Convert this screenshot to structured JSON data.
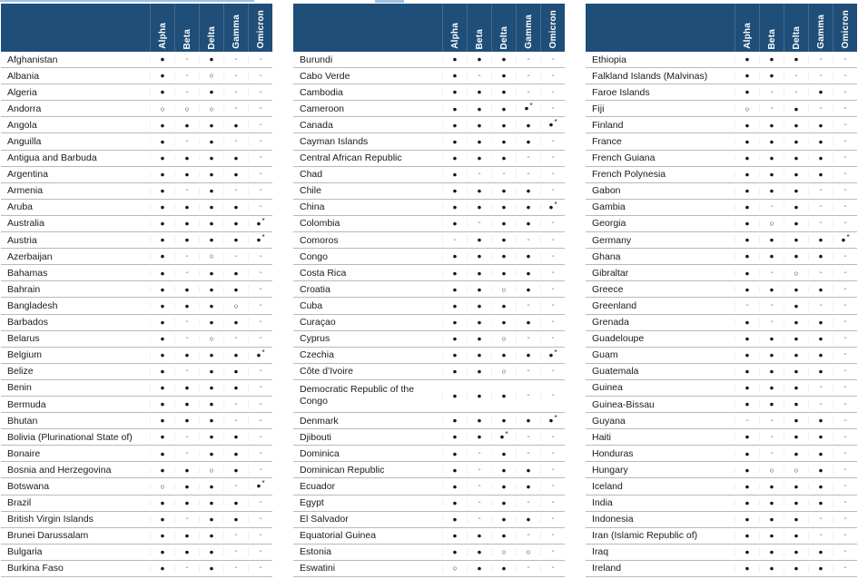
{
  "columns": [
    "Alpha",
    "Beta",
    "Delta",
    "Gamma",
    "Omicron"
  ],
  "glyphs": {
    "f": "●",
    "o": "○",
    "-": "-"
  },
  "colors": {
    "header_bg": "#1f4e79",
    "header_text": "#ffffff",
    "row_border": "#b9b9b9",
    "mark": "#141414",
    "dash": "#7f7f7f",
    "caption_remnant": "#9dc3e6"
  },
  "tables": [
    {
      "rows": [
        {
          "c": "Afghanistan",
          "m": [
            "f",
            "-",
            "f",
            "-",
            "-"
          ]
        },
        {
          "c": "Albania",
          "m": [
            "f",
            "-",
            "o",
            "-",
            "-"
          ]
        },
        {
          "c": "Algeria",
          "m": [
            "f",
            "-",
            "f",
            "-",
            "-"
          ]
        },
        {
          "c": "Andorra",
          "m": [
            "o",
            "o",
            "o",
            "-",
            "-"
          ]
        },
        {
          "c": "Angola",
          "m": [
            "f",
            "f",
            "f",
            "f",
            "-"
          ]
        },
        {
          "c": "Anguilla",
          "m": [
            "f",
            "-",
            "f",
            "-",
            "-"
          ]
        },
        {
          "c": "Antigua and Barbuda",
          "m": [
            "f",
            "f",
            "f",
            "f",
            "-"
          ]
        },
        {
          "c": "Argentina",
          "m": [
            "f",
            "f",
            "f",
            "f",
            "-"
          ]
        },
        {
          "c": "Armenia",
          "m": [
            "f",
            "-",
            "f",
            "-",
            "-"
          ]
        },
        {
          "c": "Aruba",
          "m": [
            "f",
            "f",
            "f",
            "f",
            "-"
          ]
        },
        {
          "c": "Australia",
          "m": [
            "f",
            "f",
            "f",
            "f",
            "f*"
          ]
        },
        {
          "c": "Austria",
          "m": [
            "f",
            "f",
            "f",
            "f",
            "f*"
          ]
        },
        {
          "c": "Azerbaijan",
          "m": [
            "f",
            "-",
            "o",
            "-",
            "-"
          ]
        },
        {
          "c": "Bahamas",
          "m": [
            "f",
            "-",
            "f",
            "f",
            "-"
          ]
        },
        {
          "c": "Bahrain",
          "m": [
            "f",
            "f",
            "f",
            "f",
            "-"
          ]
        },
        {
          "c": "Bangladesh",
          "m": [
            "f",
            "f",
            "f",
            "o",
            "-"
          ]
        },
        {
          "c": "Barbados",
          "m": [
            "f",
            "-",
            "f",
            "f",
            "-"
          ]
        },
        {
          "c": "Belarus",
          "m": [
            "f",
            "-",
            "o",
            "-",
            "-"
          ]
        },
        {
          "c": "Belgium",
          "m": [
            "f",
            "f",
            "f",
            "f",
            "f*"
          ]
        },
        {
          "c": "Belize",
          "m": [
            "f",
            "-",
            "f",
            "f",
            "-"
          ]
        },
        {
          "c": "Benin",
          "m": [
            "f",
            "f",
            "f",
            "f",
            "-"
          ]
        },
        {
          "c": "Bermuda",
          "m": [
            "f",
            "f",
            "f",
            "-",
            "-"
          ]
        },
        {
          "c": "Bhutan",
          "m": [
            "f",
            "f",
            "f",
            "-",
            "-"
          ]
        },
        {
          "c": "Bolivia (Plurinational State of)",
          "m": [
            "f",
            "-",
            "f",
            "f",
            "-"
          ]
        },
        {
          "c": "Bonaire",
          "m": [
            "f",
            "-",
            "f",
            "f",
            "-"
          ]
        },
        {
          "c": "Bosnia and Herzegovina",
          "m": [
            "f",
            "f",
            "o",
            "f",
            "-"
          ]
        },
        {
          "c": "Botswana",
          "m": [
            "o",
            "f",
            "f",
            "-",
            "f*"
          ]
        },
        {
          "c": "Brazil",
          "m": [
            "f",
            "f",
            "f",
            "f",
            "-"
          ]
        },
        {
          "c": "British Virgin Islands",
          "m": [
            "f",
            "-",
            "f",
            "f",
            "-"
          ]
        },
        {
          "c": "Brunei Darussalam",
          "m": [
            "f",
            "f",
            "f",
            "-",
            "-"
          ]
        },
        {
          "c": "Bulgaria",
          "m": [
            "f",
            "f",
            "f",
            "-",
            "-"
          ]
        },
        {
          "c": "Burkina Faso",
          "m": [
            "f",
            "-",
            "f",
            "-",
            "-"
          ]
        }
      ]
    },
    {
      "rows": [
        {
          "c": "Burundi",
          "m": [
            "f",
            "f",
            "f",
            "-",
            "-"
          ]
        },
        {
          "c": "Cabo Verde",
          "m": [
            "f",
            "-",
            "f",
            "-",
            "-"
          ]
        },
        {
          "c": "Cambodia",
          "m": [
            "f",
            "f",
            "f",
            "-",
            "-"
          ]
        },
        {
          "c": "Cameroon",
          "m": [
            "f",
            "f",
            "f",
            "f*",
            "-"
          ]
        },
        {
          "c": "Canada",
          "m": [
            "f",
            "f",
            "f",
            "f",
            "f*"
          ]
        },
        {
          "c": "Cayman Islands",
          "m": [
            "f",
            "f",
            "f",
            "f",
            "-"
          ]
        },
        {
          "c": "Central African Republic",
          "m": [
            "f",
            "f",
            "f",
            "-",
            "-"
          ]
        },
        {
          "c": "Chad",
          "m": [
            "f",
            "-",
            "-",
            "-",
            "-"
          ]
        },
        {
          "c": "Chile",
          "m": [
            "f",
            "f",
            "f",
            "f",
            "-"
          ]
        },
        {
          "c": "China",
          "m": [
            "f",
            "f",
            "f",
            "f",
            "f*"
          ]
        },
        {
          "c": "Colombia",
          "m": [
            "f",
            "-",
            "f",
            "f",
            "-"
          ]
        },
        {
          "c": "Comoros",
          "m": [
            "-",
            "f",
            "f",
            "-",
            "-"
          ]
        },
        {
          "c": "Congo",
          "m": [
            "f",
            "f",
            "f",
            "f",
            "-"
          ]
        },
        {
          "c": "Costa Rica",
          "m": [
            "f",
            "f",
            "f",
            "f",
            "-"
          ]
        },
        {
          "c": "Croatia",
          "m": [
            "f",
            "f",
            "o",
            "f",
            "-"
          ]
        },
        {
          "c": "Cuba",
          "m": [
            "f",
            "f",
            "f",
            "-",
            "-"
          ]
        },
        {
          "c": "Curaçao",
          "m": [
            "f",
            "f",
            "f",
            "f",
            "-"
          ]
        },
        {
          "c": "Cyprus",
          "m": [
            "f",
            "f",
            "o",
            "-",
            "-"
          ]
        },
        {
          "c": "Czechia",
          "m": [
            "f",
            "f",
            "f",
            "f",
            "f*"
          ]
        },
        {
          "c": "Côte d’Ivoire",
          "m": [
            "f",
            "f",
            "o",
            "-",
            "-"
          ]
        },
        {
          "c": "Democratic Republic of the Congo",
          "m": [
            "f",
            "f",
            "f",
            "-",
            "-"
          ],
          "two_line": true
        },
        {
          "c": "Denmark",
          "m": [
            "f",
            "f",
            "f",
            "f",
            "f*"
          ]
        },
        {
          "c": "Djibouti",
          "m": [
            "f",
            "f",
            "f*",
            "-",
            "-"
          ]
        },
        {
          "c": "Dominica",
          "m": [
            "f",
            "-",
            "f",
            "-",
            "-"
          ]
        },
        {
          "c": "Dominican Republic",
          "m": [
            "f",
            "-",
            "f",
            "f",
            "-"
          ]
        },
        {
          "c": "Ecuador",
          "m": [
            "f",
            "-",
            "f",
            "f",
            "-"
          ]
        },
        {
          "c": "Egypt",
          "m": [
            "f",
            "-",
            "f",
            "-",
            "-"
          ]
        },
        {
          "c": "El Salvador",
          "m": [
            "f",
            "-",
            "f",
            "f",
            "-"
          ]
        },
        {
          "c": "Equatorial Guinea",
          "m": [
            "f",
            "f",
            "f",
            "-",
            "-"
          ]
        },
        {
          "c": "Estonia",
          "m": [
            "f",
            "f",
            "o",
            "o",
            "-"
          ]
        },
        {
          "c": "Eswatini",
          "m": [
            "o",
            "f",
            "f",
            "-",
            "-"
          ]
        }
      ]
    },
    {
      "rows": [
        {
          "c": "Ethiopia",
          "m": [
            "f",
            "f",
            "f",
            "-",
            "-"
          ]
        },
        {
          "c": "Falkland Islands (Malvinas)",
          "m": [
            "f",
            "f",
            "-",
            "-",
            "-"
          ]
        },
        {
          "c": "Faroe Islands",
          "m": [
            "f",
            "-",
            "-",
            "f",
            "-"
          ]
        },
        {
          "c": "Fiji",
          "m": [
            "o",
            "-",
            "f",
            "-",
            "-"
          ]
        },
        {
          "c": "Finland",
          "m": [
            "f",
            "f",
            "f",
            "f",
            "-"
          ]
        },
        {
          "c": "France",
          "m": [
            "f",
            "f",
            "f",
            "f",
            "-"
          ]
        },
        {
          "c": "French Guiana",
          "m": [
            "f",
            "f",
            "f",
            "f",
            "-"
          ]
        },
        {
          "c": "French Polynesia",
          "m": [
            "f",
            "f",
            "f",
            "f",
            "-"
          ]
        },
        {
          "c": "Gabon",
          "m": [
            "f",
            "f",
            "f",
            "-",
            "-"
          ]
        },
        {
          "c": "Gambia",
          "m": [
            "f",
            "-",
            "f",
            "-",
            "-"
          ]
        },
        {
          "c": "Georgia",
          "m": [
            "f",
            "o",
            "f",
            "-",
            "-"
          ]
        },
        {
          "c": "Germany",
          "m": [
            "f",
            "f",
            "f",
            "f",
            "f*"
          ]
        },
        {
          "c": "Ghana",
          "m": [
            "f",
            "f",
            "f",
            "f",
            "-"
          ]
        },
        {
          "c": "Gibraltar",
          "m": [
            "f",
            "-",
            "o",
            "-",
            "-"
          ]
        },
        {
          "c": "Greece",
          "m": [
            "f",
            "f",
            "f",
            "f",
            "-"
          ]
        },
        {
          "c": "Greenland",
          "m": [
            "-",
            "-",
            "f",
            "-",
            "-"
          ]
        },
        {
          "c": "Grenada",
          "m": [
            "f",
            "-",
            "f",
            "f",
            "-"
          ]
        },
        {
          "c": "Guadeloupe",
          "m": [
            "f",
            "f",
            "f",
            "f",
            "-"
          ]
        },
        {
          "c": "Guam",
          "m": [
            "f",
            "f",
            "f",
            "f",
            "-"
          ]
        },
        {
          "c": "Guatemala",
          "m": [
            "f",
            "f",
            "f",
            "f",
            "-"
          ]
        },
        {
          "c": "Guinea",
          "m": [
            "f",
            "f",
            "f",
            "-",
            "-"
          ]
        },
        {
          "c": "Guinea-Bissau",
          "m": [
            "f",
            "f",
            "f",
            "-",
            "-"
          ]
        },
        {
          "c": "Guyana",
          "m": [
            "-",
            "-",
            "f",
            "f",
            "-"
          ]
        },
        {
          "c": "Haiti",
          "m": [
            "f",
            "-",
            "f",
            "f",
            "-"
          ]
        },
        {
          "c": "Honduras",
          "m": [
            "f",
            "-",
            "f",
            "f",
            "-"
          ]
        },
        {
          "c": "Hungary",
          "m": [
            "f",
            "o",
            "o",
            "f",
            "-"
          ]
        },
        {
          "c": "Iceland",
          "m": [
            "f",
            "f",
            "f",
            "f",
            "-"
          ]
        },
        {
          "c": "India",
          "m": [
            "f",
            "f",
            "f",
            "f",
            "-"
          ]
        },
        {
          "c": "Indonesia",
          "m": [
            "f",
            "f",
            "f",
            "-",
            "-"
          ]
        },
        {
          "c": "Iran (Islamic Republic of)",
          "m": [
            "f",
            "f",
            "f",
            "-",
            "-"
          ]
        },
        {
          "c": "Iraq",
          "m": [
            "f",
            "f",
            "f",
            "f",
            "-"
          ]
        },
        {
          "c": "Ireland",
          "m": [
            "f",
            "f",
            "f",
            "f",
            "-"
          ]
        }
      ]
    }
  ]
}
